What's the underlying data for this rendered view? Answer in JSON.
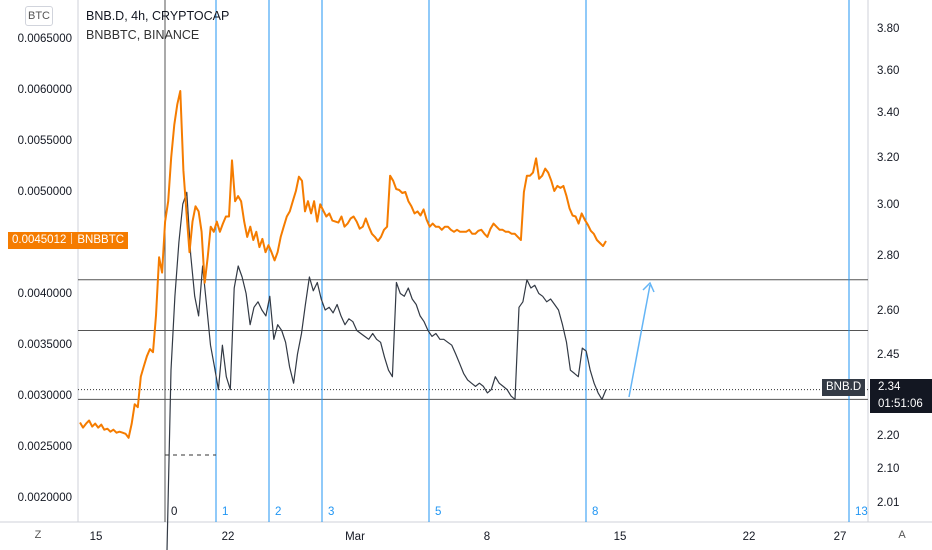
{
  "legend": {
    "main": "BNB.D, 4h, CRYPTOCAP",
    "compare": "BNBBTC, BINANCE"
  },
  "buttons": {
    "currency": "BTC",
    "timezone": "Z",
    "auto": "A"
  },
  "tags": {
    "left_value": "0.0045012",
    "left_name": "BNBBTC",
    "right_name": "BNB.D",
    "right_value": "2.34",
    "right_countdown": "01:51:06"
  },
  "colors": {
    "bnbbtc": "#f57c00",
    "bnbd": "#333a45",
    "fib": "#2196f3",
    "arrow": "#64b5f6",
    "hline": "#555555"
  },
  "chart_data": {
    "type": "line",
    "title": "BNB.D, 4h, CRYPTOCAP",
    "x_ticks": [
      "15",
      "22",
      "Mar",
      "8",
      "15",
      "22",
      "27"
    ],
    "y_left_ticks": [
      "0.0065000",
      "0.0060000",
      "0.0055000",
      "0.0050000",
      "0.0045000",
      "0.0040000",
      "0.0035000",
      "0.0030000",
      "0.0025000",
      "0.0020000"
    ],
    "y_right_ticks": [
      "3.80",
      "3.60",
      "3.40",
      "3.20",
      "3.00",
      "2.80",
      "2.60",
      "2.45",
      "2.20",
      "2.10",
      "2.01"
    ],
    "fib_time_labels": [
      "0",
      "1",
      "2",
      "3",
      "5",
      "8",
      "13"
    ],
    "series": [
      {
        "name": "BNBBTC",
        "axis": "left",
        "values": [
          0.00273,
          0.00268,
          0.00272,
          0.00275,
          0.00269,
          0.00272,
          0.00268,
          0.00271,
          0.00266,
          0.00267,
          0.00264,
          0.00266,
          0.00263,
          0.00264,
          0.00263,
          0.00262,
          0.00258,
          0.00272,
          0.00291,
          0.00288,
          0.00318,
          0.00328,
          0.00338,
          0.00345,
          0.00342,
          0.00378,
          0.00435,
          0.0042,
          0.0047,
          0.0049,
          0.00533,
          0.00565,
          0.00585,
          0.00598,
          0.0052,
          0.0048,
          0.0044,
          0.0047,
          0.00485,
          0.0048,
          0.0046,
          0.0041,
          0.00435,
          0.00465,
          0.0046,
          0.0047,
          0.0046,
          0.00468,
          0.00475,
          0.00475,
          0.0053,
          0.0049,
          0.00495,
          0.0049,
          0.0047,
          0.00455,
          0.00465,
          0.00452,
          0.0046,
          0.00445,
          0.00453,
          0.0044,
          0.00447,
          0.0044,
          0.00432,
          0.0044,
          0.00455,
          0.00465,
          0.00475,
          0.0048,
          0.0049,
          0.005,
          0.00514,
          0.0051,
          0.0048,
          0.0049,
          0.00478,
          0.0049,
          0.0047,
          0.00487,
          0.00481,
          0.00475,
          0.00478,
          0.00471,
          0.0047,
          0.00469,
          0.00475,
          0.00465,
          0.00468,
          0.00473,
          0.00475,
          0.0047,
          0.00463,
          0.00465,
          0.00473,
          0.00465,
          0.00458,
          0.00455,
          0.00451,
          0.00455,
          0.00462,
          0.00465,
          0.00515,
          0.0051,
          0.00502,
          0.00501,
          0.00498,
          0.00499,
          0.0049,
          0.00485,
          0.00478,
          0.0048,
          0.00476,
          0.00482,
          0.00472,
          0.00465,
          0.00468,
          0.00465,
          0.00465,
          0.00462,
          0.00465,
          0.00465,
          0.00462,
          0.0046,
          0.00462,
          0.0046,
          0.0046,
          0.0046,
          0.00462,
          0.00458,
          0.00458,
          0.00461,
          0.00462,
          0.00458,
          0.00455,
          0.00463,
          0.00468,
          0.00465,
          0.00462,
          0.00462,
          0.0046,
          0.0046,
          0.00458,
          0.00458,
          0.00455,
          0.00452,
          0.00499,
          0.00515,
          0.00515,
          0.00518,
          0.00532,
          0.00512,
          0.00515,
          0.00522,
          0.00518,
          0.0051,
          0.005,
          0.00505,
          0.00503,
          0.00505,
          0.00495,
          0.00483,
          0.00476,
          0.00475,
          0.00468,
          0.00478,
          0.00472,
          0.00467,
          0.00461,
          0.00458,
          0.00452,
          0.00449,
          0.00446,
          0.00451
        ]
      },
      {
        "name": "BNB.D",
        "axis": "right",
        "values": [
          1.75,
          2.4,
          2.65,
          2.85,
          3.0,
          3.05,
          2.8,
          2.65,
          2.58,
          2.76,
          2.62,
          2.48,
          2.41,
          2.34,
          2.48,
          2.38,
          2.34,
          2.68,
          2.76,
          2.72,
          2.66,
          2.55,
          2.61,
          2.63,
          2.6,
          2.58,
          2.65,
          2.5,
          2.55,
          2.53,
          2.49,
          2.41,
          2.36,
          2.45,
          2.52,
          2.62,
          2.72,
          2.67,
          2.7,
          2.64,
          2.6,
          2.61,
          2.59,
          2.62,
          2.58,
          2.55,
          2.57,
          2.56,
          2.53,
          2.52,
          2.51,
          2.5,
          2.52,
          2.5,
          2.49,
          2.44,
          2.4,
          2.38,
          2.7,
          2.66,
          2.65,
          2.68,
          2.64,
          2.62,
          2.58,
          2.56,
          2.53,
          2.51,
          2.52,
          2.5,
          2.5,
          2.49,
          2.48,
          2.45,
          2.42,
          2.39,
          2.37,
          2.36,
          2.35,
          2.36,
          2.35,
          2.33,
          2.34,
          2.38,
          2.36,
          2.35,
          2.34,
          2.32,
          2.31,
          2.61,
          2.63,
          2.71,
          2.68,
          2.69,
          2.66,
          2.65,
          2.63,
          2.64,
          2.62,
          2.6,
          2.55,
          2.49,
          2.4,
          2.39,
          2.38,
          2.47,
          2.46,
          2.4,
          2.36,
          2.33,
          2.31,
          2.34
        ]
      }
    ],
    "annotations": {
      "horizontal_levels_right_axis": [
        2.71,
        2.53,
        2.31
      ],
      "dotted_line_right_axis": 2.34,
      "arrow": "trend arrow pointing up"
    }
  }
}
